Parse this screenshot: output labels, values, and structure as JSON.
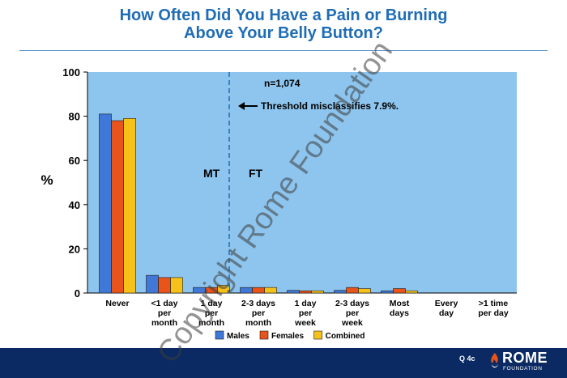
{
  "title_line1": "How Often Did You Have a Pain or Burning",
  "title_line2": "Above Your Belly Button?",
  "annotations": {
    "n": "n=1,074",
    "threshold": "Threshold misclassifies 7.9%.",
    "mt": "MT",
    "ft": "FT"
  },
  "colors": {
    "title": "#1f6db5",
    "plot_bg": "#8ec5ee",
    "males": "#3f78d6",
    "females": "#e8541a",
    "combined": "#f6c21a",
    "footer": "#0b2a63"
  },
  "chart_data": {
    "type": "bar",
    "ylabel": "%",
    "ylim": [
      0,
      100
    ],
    "yticks": [
      0,
      20,
      40,
      60,
      80,
      100
    ],
    "categories": [
      [
        "Never"
      ],
      [
        "<1 day",
        "per",
        "month"
      ],
      [
        "1 day",
        "per",
        "month"
      ],
      [
        "2-3 days",
        "per",
        "month"
      ],
      [
        "1 day",
        "per",
        "week"
      ],
      [
        "2-3 days",
        "per",
        "week"
      ],
      [
        "Most",
        "days"
      ],
      [
        "Every",
        "day"
      ],
      [
        ">1 time",
        "per day"
      ]
    ],
    "series": [
      {
        "name": "Males",
        "values": [
          81,
          8,
          2.5,
          2.5,
          1.2,
          1.2,
          1,
          0,
          0
        ]
      },
      {
        "name": "Females",
        "values": [
          78,
          7,
          2.5,
          2.5,
          1,
          2.5,
          2,
          0,
          0
        ]
      },
      {
        "name": "Combined",
        "values": [
          79,
          7,
          3.5,
          2.5,
          1,
          2,
          1,
          0,
          0
        ]
      }
    ],
    "threshold_between_categories": [
      2,
      3
    ],
    "legend_position": "bottom-center",
    "grid": false
  },
  "footer": {
    "code": "Q 4c",
    "brand_name": "ROME",
    "brand_sub": "FOUNDATION"
  },
  "watermark": "Copyright Rome Foundation"
}
